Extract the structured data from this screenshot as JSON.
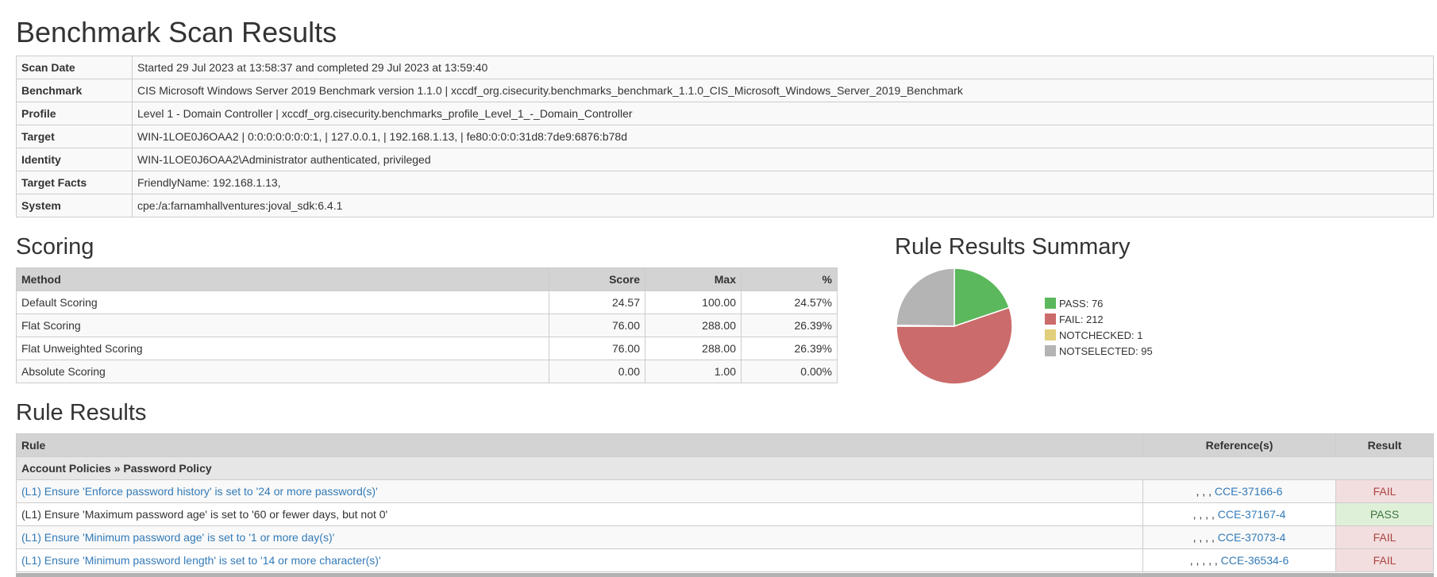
{
  "page_title": "Benchmark Scan Results",
  "info": [
    {
      "key": "Scan Date",
      "value": "Started 29 Jul 2023 at 13:58:37 and completed 29 Jul 2023 at 13:59:40"
    },
    {
      "key": "Benchmark",
      "value": "CIS Microsoft Windows Server 2019 Benchmark version 1.1.0 | xccdf_org.cisecurity.benchmarks_benchmark_1.1.0_CIS_Microsoft_Windows_Server_2019_Benchmark"
    },
    {
      "key": "Profile",
      "value": "Level 1 - Domain Controller | xccdf_org.cisecurity.benchmarks_profile_Level_1_-_Domain_Controller"
    },
    {
      "key": "Target",
      "value": "WIN-1LOE0J6OAA2 | 0:0:0:0:0:0:0:1, | 127.0.0.1, | 192.168.1.13, | fe80:0:0:0:31d8:7de9:6876:b78d"
    },
    {
      "key": "Identity",
      "value": "WIN-1LOE0J6OAA2\\Administrator authenticated, privileged"
    },
    {
      "key": "Target Facts",
      "value": "FriendlyName: 192.168.1.13,"
    },
    {
      "key": "System",
      "value": "cpe:/a:farnamhallventures:joval_sdk:6.4.1"
    }
  ],
  "scoring": {
    "title": "Scoring",
    "headers": {
      "method": "Method",
      "score": "Score",
      "max": "Max",
      "pct": "%"
    },
    "rows": [
      {
        "method": "Default Scoring",
        "score": "24.57",
        "max": "100.00",
        "pct": "24.57%"
      },
      {
        "method": "Flat Scoring",
        "score": "76.00",
        "max": "288.00",
        "pct": "26.39%"
      },
      {
        "method": "Flat Unweighted Scoring",
        "score": "76.00",
        "max": "288.00",
        "pct": "26.39%"
      },
      {
        "method": "Absolute Scoring",
        "score": "0.00",
        "max": "1.00",
        "pct": "0.00%"
      }
    ]
  },
  "summary": {
    "title": "Rule Results Summary",
    "legend": [
      {
        "label": "PASS: 76",
        "color": "#5cb85c"
      },
      {
        "label": "FAIL: 212",
        "color": "#cc6b6b"
      },
      {
        "label": "NOTCHECKED: 1",
        "color": "#e2cf7c"
      },
      {
        "label": "NOTSELECTED: 95",
        "color": "#b4b4b4"
      }
    ],
    "slices": [
      {
        "name": "PASS",
        "value": 76,
        "color": "#5cb85c"
      },
      {
        "name": "FAIL",
        "value": 212,
        "color": "#cc6b6b"
      },
      {
        "name": "NOTCHECKED",
        "value": 1,
        "color": "#e2cf7c"
      },
      {
        "name": "NOTSELECTED",
        "value": 95,
        "color": "#b4b4b4"
      }
    ]
  },
  "rules": {
    "title": "Rule Results",
    "headers": {
      "rule": "Rule",
      "refs": "Reference(s)",
      "result": "Result"
    },
    "group": "Account Policies » Password Policy",
    "rows": [
      {
        "rule": "(L1) Ensure 'Enforce password history' is set to '24 or more password(s)'",
        "refs_prefix": ", , , ",
        "ref": "CCE-37166-6",
        "result": "FAIL"
      },
      {
        "rule": "(L1) Ensure 'Maximum password age' is set to '60 or fewer days, but not 0'",
        "refs_prefix": ", , , , ",
        "ref": "CCE-37167-4",
        "result": "PASS"
      },
      {
        "rule": "(L1) Ensure 'Minimum password age' is set to '1 or more day(s)'",
        "refs_prefix": ", , , , ",
        "ref": "CCE-37073-4",
        "result": "FAIL"
      },
      {
        "rule": "(L1) Ensure 'Minimum password length' is set to '14 or more character(s)'",
        "refs_prefix": ", , , , , ",
        "ref": "CCE-36534-6",
        "result": "FAIL"
      }
    ]
  }
}
